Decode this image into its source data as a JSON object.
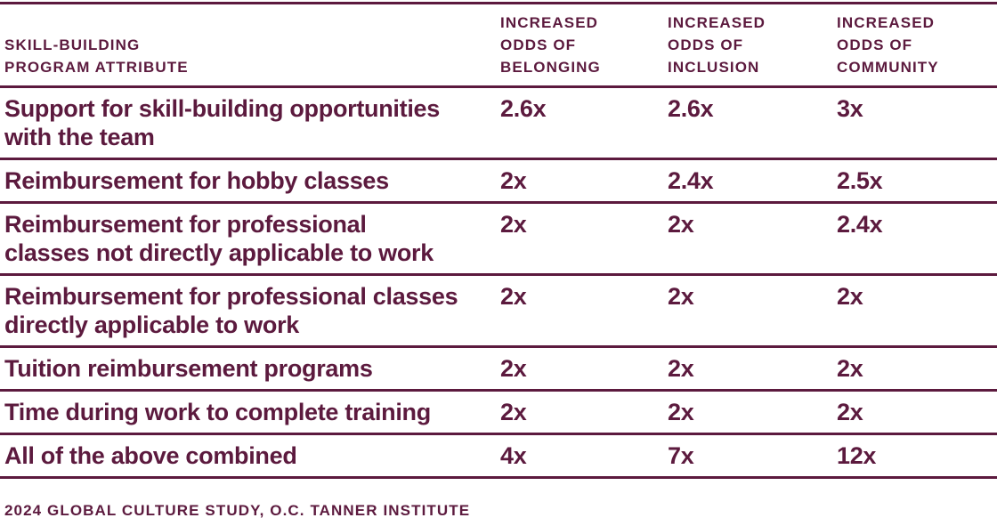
{
  "colors": {
    "maroon": "#5C1A3E",
    "background": "#FFFFFF"
  },
  "table": {
    "header": [
      {
        "lines": [
          "SKILL-BUILDING",
          "PROGRAM ATTRIBUTE"
        ]
      },
      {
        "lines": [
          "INCREASED",
          "ODDS OF",
          "BELONGING"
        ]
      },
      {
        "lines": [
          "INCREASED",
          "ODDS OF",
          "INCLUSION"
        ]
      },
      {
        "lines": [
          "INCREASED",
          "ODDS OF",
          "COMMUNITY"
        ]
      }
    ],
    "rows": [
      {
        "attribute_lines": [
          "Support for skill-building opportunities",
          "with the team"
        ],
        "belonging": "2.6x",
        "inclusion": "2.6x",
        "community": "3x"
      },
      {
        "attribute_lines": [
          "Reimbursement for hobby classes"
        ],
        "belonging": "2x",
        "inclusion": "2.4x",
        "community": "2.5x"
      },
      {
        "attribute_lines": [
          "Reimbursement for professional",
          "classes not directly applicable to work"
        ],
        "belonging": "2x",
        "inclusion": "2x",
        "community": "2.4x"
      },
      {
        "attribute_lines": [
          "Reimbursement for professional classes",
          "directly applicable to work"
        ],
        "belonging": "2x",
        "inclusion": "2x",
        "community": "2x"
      },
      {
        "attribute_lines": [
          "Tuition reimbursement programs"
        ],
        "belonging": "2x",
        "inclusion": "2x",
        "community": "2x"
      },
      {
        "attribute_lines": [
          "Time during work to complete training"
        ],
        "belonging": "2x",
        "inclusion": "2x",
        "community": "2x"
      },
      {
        "attribute_lines": [
          "All of the above combined"
        ],
        "belonging": "4x",
        "inclusion": "7x",
        "community": "12x"
      }
    ]
  },
  "footer": {
    "source": "2024 GLOBAL CULTURE STUDY, O.C. TANNER INSTITUTE"
  },
  "chart_data": {
    "type": "table",
    "columns": [
      "Skill-Building Program Attribute",
      "Increased Odds of Belonging",
      "Increased Odds of Inclusion",
      "Increased Odds of Community"
    ],
    "rows": [
      [
        "Support for skill-building opportunities with the team",
        "2.6x",
        "2.6x",
        "3x"
      ],
      [
        "Reimbursement for hobby classes",
        "2x",
        "2.4x",
        "2.5x"
      ],
      [
        "Reimbursement for professional classes not directly applicable to work",
        "2x",
        "2x",
        "2.4x"
      ],
      [
        "Reimbursement for professional classes directly applicable to work",
        "2x",
        "2x",
        "2x"
      ],
      [
        "Tuition reimbursement programs",
        "2x",
        "2x",
        "2x"
      ],
      [
        "Time during work to complete training",
        "2x",
        "2x",
        "2x"
      ],
      [
        "All of the above combined",
        "4x",
        "7x",
        "12x"
      ]
    ],
    "series": [
      {
        "name": "Increased Odds of Belonging",
        "values": [
          2.6,
          2,
          2,
          2,
          2,
          2,
          4
        ]
      },
      {
        "name": "Increased Odds of Inclusion",
        "values": [
          2.6,
          2.4,
          2,
          2,
          2,
          2,
          7
        ]
      },
      {
        "name": "Increased Odds of Community",
        "values": [
          3,
          2.5,
          2.4,
          2,
          2,
          2,
          12
        ]
      }
    ],
    "source": "2024 Global Culture Study, O.C. Tanner Institute",
    "text_color": "#5C1A3E",
    "grid": "horizontal-rules-only",
    "legend_position": "none"
  }
}
